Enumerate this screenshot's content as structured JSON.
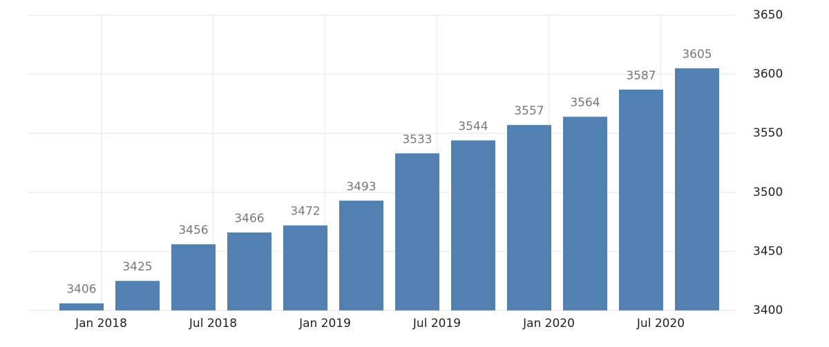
{
  "chart_data": {
    "type": "bar",
    "categories": [
      null,
      null,
      null,
      null,
      null,
      null,
      null,
      null,
      null,
      null,
      null,
      null
    ],
    "values": [
      3406,
      3425,
      3456,
      3466,
      3472,
      3493,
      3533,
      3544,
      3557,
      3564,
      3587,
      3605
    ],
    "x_labels": [
      "Jan 2018",
      "Jul 2018",
      "Jan 2019",
      "Jul 2019",
      "Jan 2020",
      "Jul 2020"
    ],
    "color": "#5280b1",
    "ylim": [
      3400,
      3650
    ],
    "yticks": [
      3400,
      3450,
      3500,
      3550,
      3600,
      3650
    ],
    "grid": true,
    "y_axis_side": "right"
  }
}
